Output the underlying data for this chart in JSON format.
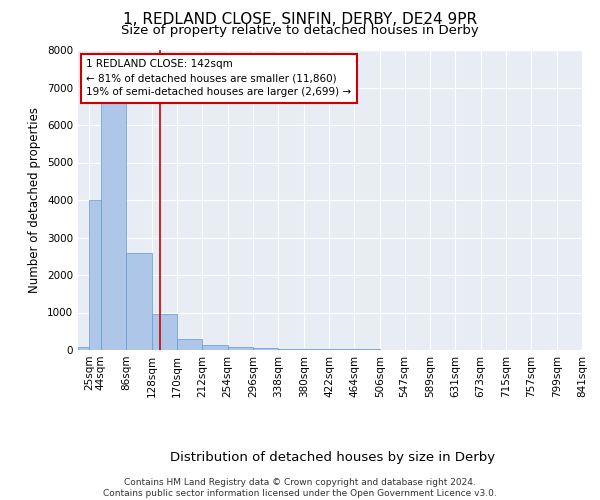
{
  "title": "1, REDLAND CLOSE, SINFIN, DERBY, DE24 9PR",
  "subtitle": "Size of property relative to detached houses in Derby",
  "xlabel": "Distribution of detached houses by size in Derby",
  "ylabel": "Number of detached properties",
  "bin_labels": [
    "25sqm",
    "44sqm",
    "86sqm",
    "128sqm",
    "170sqm",
    "212sqm",
    "254sqm",
    "296sqm",
    "338sqm",
    "380sqm",
    "422sqm",
    "464sqm",
    "506sqm",
    "547sqm",
    "589sqm",
    "631sqm",
    "673sqm",
    "715sqm",
    "757sqm",
    "799sqm",
    "841sqm"
  ],
  "bin_edges": [
    6,
    25,
    44,
    86,
    128,
    170,
    212,
    254,
    296,
    338,
    380,
    422,
    464,
    506,
    547,
    589,
    631,
    673,
    715,
    757,
    799,
    841
  ],
  "bar_heights": [
    75,
    4000,
    6600,
    2600,
    950,
    300,
    130,
    90,
    60,
    40,
    30,
    20,
    15,
    10,
    8,
    5,
    4,
    3,
    2,
    2,
    2
  ],
  "bar_color": "#aec6e8",
  "bar_edge_color": "#5b9bd5",
  "property_size": 142,
  "property_line_color": "#cc0000",
  "annotation_text": "1 REDLAND CLOSE: 142sqm\n← 81% of detached houses are smaller (11,860)\n19% of semi-detached houses are larger (2,699) →",
  "annotation_box_color": "#ffffff",
  "annotation_box_edge_color": "#cc0000",
  "ylim": [
    0,
    8000
  ],
  "yticks": [
    0,
    1000,
    2000,
    3000,
    4000,
    5000,
    6000,
    7000,
    8000
  ],
  "background_color": "#e8edf5",
  "footer_text": "Contains HM Land Registry data © Crown copyright and database right 2024.\nContains public sector information licensed under the Open Government Licence v3.0.",
  "title_fontsize": 11,
  "subtitle_fontsize": 9.5,
  "xlabel_fontsize": 9.5,
  "ylabel_fontsize": 8.5,
  "tick_fontsize": 7.5,
  "footer_fontsize": 6.5
}
